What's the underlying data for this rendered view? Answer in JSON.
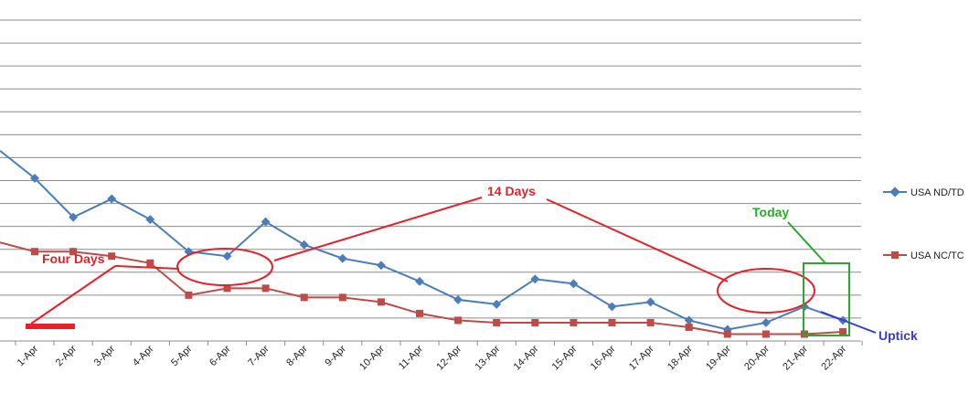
{
  "chart_data": {
    "type": "line",
    "categories": [
      "1-Apr",
      "2-Apr",
      "3-Apr",
      "4-Apr",
      "5-Apr",
      "6-Apr",
      "7-Apr",
      "8-Apr",
      "9-Apr",
      "10-Apr",
      "11-Apr",
      "12-Apr",
      "13-Apr",
      "14-Apr",
      "15-Apr",
      "16-Apr",
      "17-Apr",
      "18-Apr",
      "19-Apr",
      "20-Apr",
      "21-Apr",
      "22-Apr"
    ],
    "ylim": [
      0,
      14
    ],
    "y_tick_labels_shown": false,
    "grid": true,
    "legend_position": "right",
    "series": [
      {
        "name": "USA ND/TD",
        "color": "#4a7ebb",
        "marker": "diamond",
        "leading_value": 8.3,
        "values": [
          7.1,
          5.4,
          6.2,
          5.3,
          3.9,
          3.7,
          5.2,
          4.2,
          3.6,
          3.3,
          2.6,
          1.8,
          1.6,
          2.7,
          2.5,
          1.5,
          1.7,
          0.9,
          0.5,
          0.8,
          1.5,
          0.9
        ]
      },
      {
        "name": "USA NC/TC",
        "color": "#be4b48",
        "marker": "square",
        "leading_value": 4.3,
        "values": [
          3.9,
          3.9,
          3.7,
          3.4,
          2.0,
          2.3,
          2.3,
          1.9,
          1.9,
          1.7,
          1.2,
          0.9,
          0.8,
          0.8,
          0.8,
          0.8,
          0.8,
          0.6,
          0.3,
          0.3,
          0.3,
          0.4
        ]
      }
    ],
    "annotations": {
      "four_days": "Four Days",
      "fourteen_days": "14 Days",
      "today": "Today",
      "uptick": "Uptick"
    },
    "annotation_colors": {
      "red": "#e8202a",
      "green": "#2aaa2a",
      "blue": "#3a3acc"
    }
  }
}
